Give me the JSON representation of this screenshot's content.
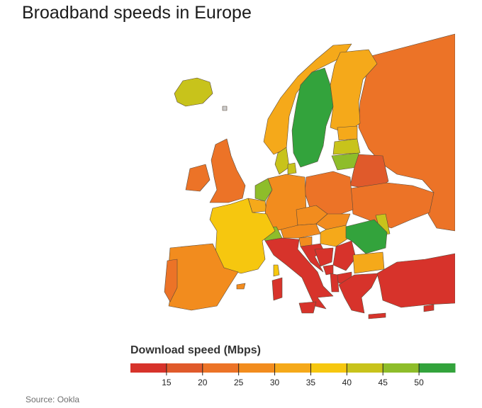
{
  "title": "Broadband speeds in Europe",
  "legend": {
    "title": "Download speed (Mbps)",
    "range": [
      10,
      55
    ],
    "colors": [
      "#d7332b",
      "#e05a2b",
      "#ec7327",
      "#f28c1e",
      "#f5a91a",
      "#f6c70f",
      "#c8c31b",
      "#8ebd2a",
      "#33a33c"
    ],
    "ticks": [
      "15",
      "20",
      "25",
      "30",
      "35",
      "40",
      "45",
      "50"
    ]
  },
  "source": "Source: Ookla"
}
